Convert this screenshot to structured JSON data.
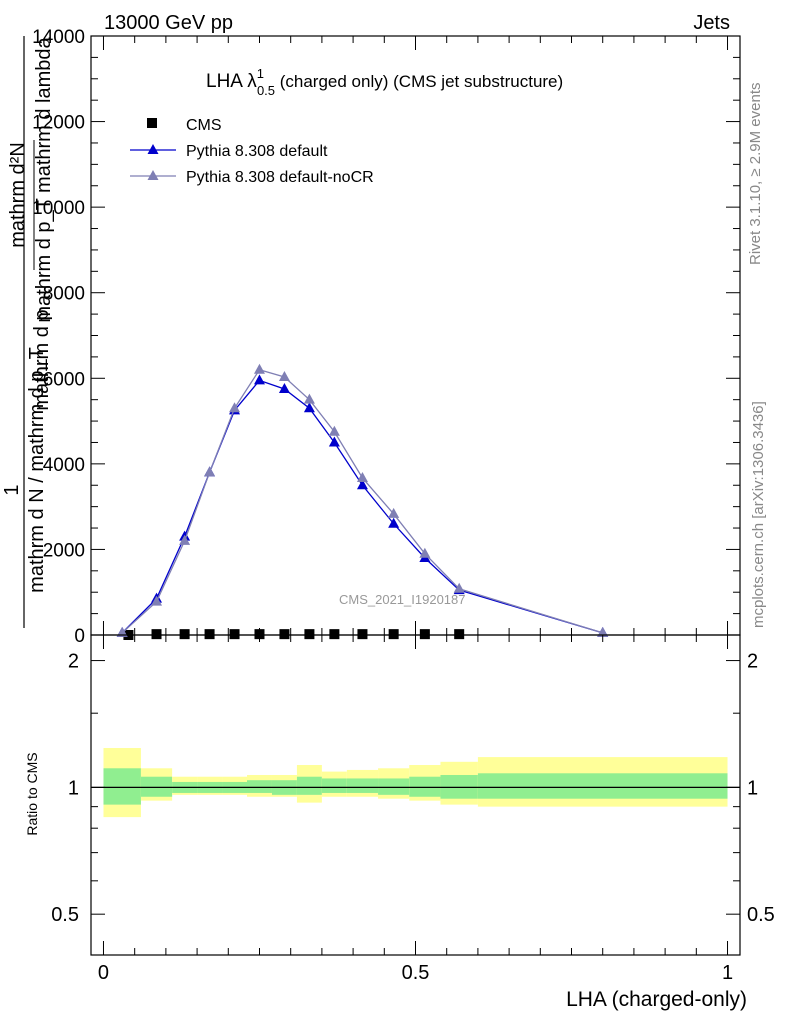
{
  "header": {
    "left": "13000 GeV pp",
    "right": "Jets"
  },
  "side_labels": {
    "rivet_prefix": "Rivet 3.1.10, ",
    "rivet_symbol": "≥",
    "rivet_suffix": " 2.9M events",
    "mcplots": "mcplots.cern.ch [arXiv:1306.3436]"
  },
  "chart_data": [
    {
      "type": "line",
      "title_main": "LHA λ",
      "title_sup": "1",
      "title_sub": "0.5",
      "title_rest": " (charged only) (CMS jet substructure)",
      "watermark": "CMS_2021_I1920187",
      "ylabel_numerator": "1",
      "ylabel_denominator": "mathrm d N / mathrm d p_T",
      "ylabel_frac_top": "mathrm d²N",
      "ylabel_frac_bottom": "mathrm d p_T mathrm d lambda",
      "ylabel_extra": "mathrm d p",
      "ylim": [
        0,
        14000
      ],
      "yticks": [
        0,
        2000,
        4000,
        6000,
        8000,
        10000,
        12000,
        14000
      ],
      "ytick_labels": [
        "0",
        "2000",
        "4000",
        "6000",
        "8000",
        "10000",
        "12000",
        "14000"
      ],
      "xlim": [
        -0.02,
        1.02
      ],
      "legend_position": "top-left",
      "series": [
        {
          "name": "CMS",
          "style": "square",
          "color": "#000000",
          "x": [
            0.04,
            0.085,
            0.13,
            0.17,
            0.21,
            0.25,
            0.29,
            0.33,
            0.37,
            0.415,
            0.465,
            0.515,
            0.57
          ],
          "y": [
            0,
            20,
            20,
            20,
            20,
            20,
            20,
            20,
            20,
            20,
            20,
            20,
            20
          ]
        },
        {
          "name": "Pythia 8.308 default",
          "style": "triangle",
          "color": "#0000cc",
          "x": [
            0.03,
            0.085,
            0.13,
            0.17,
            0.21,
            0.25,
            0.29,
            0.33,
            0.37,
            0.415,
            0.465,
            0.515,
            0.57,
            0.8
          ],
          "y": [
            50,
            850,
            2300,
            3800,
            5250,
            5950,
            5750,
            5300,
            4500,
            3500,
            2600,
            1800,
            1050,
            50
          ]
        },
        {
          "name": "Pythia 8.308 default-noCR",
          "style": "triangle",
          "color": "#7f7fb4",
          "x": [
            0.03,
            0.085,
            0.13,
            0.17,
            0.21,
            0.25,
            0.29,
            0.33,
            0.37,
            0.415,
            0.465,
            0.515,
            0.57,
            0.8
          ],
          "y": [
            50,
            780,
            2200,
            3800,
            5300,
            6200,
            6030,
            5500,
            4750,
            3670,
            2830,
            1900,
            1080,
            50
          ]
        }
      ]
    },
    {
      "type": "area",
      "ylabel": "Ratio to CMS",
      "xlabel": "LHA (charged-only)",
      "xlim": [
        -0.02,
        1.02
      ],
      "ylim": [
        0.4,
        2.3
      ],
      "log_y": true,
      "yticks": [
        0.5,
        1,
        2
      ],
      "ytick_labels": [
        "0.5",
        "1",
        "2"
      ],
      "xticks": [
        0,
        0.5,
        1
      ],
      "xtick_labels": [
        "0",
        "0.5",
        "1"
      ],
      "bins": [
        0,
        0.06,
        0.11,
        0.15,
        0.19,
        0.23,
        0.27,
        0.31,
        0.35,
        0.39,
        0.44,
        0.49,
        0.54,
        0.6,
        1.0
      ],
      "stat_band": {
        "color": "#90ee90",
        "low": [
          0.91,
          0.95,
          0.97,
          0.97,
          0.97,
          0.97,
          0.96,
          0.96,
          0.97,
          0.97,
          0.96,
          0.95,
          0.94,
          0.94
        ],
        "high": [
          1.11,
          1.06,
          1.03,
          1.03,
          1.03,
          1.04,
          1.04,
          1.06,
          1.05,
          1.05,
          1.05,
          1.06,
          1.07,
          1.08
        ]
      },
      "syst_band": {
        "color": "#ffff99",
        "low": [
          0.85,
          0.93,
          0.96,
          0.96,
          0.96,
          0.95,
          0.95,
          0.92,
          0.95,
          0.95,
          0.94,
          0.93,
          0.91,
          0.9
        ],
        "high": [
          1.24,
          1.11,
          1.06,
          1.06,
          1.06,
          1.07,
          1.07,
          1.13,
          1.09,
          1.1,
          1.11,
          1.13,
          1.15,
          1.18
        ]
      }
    }
  ]
}
